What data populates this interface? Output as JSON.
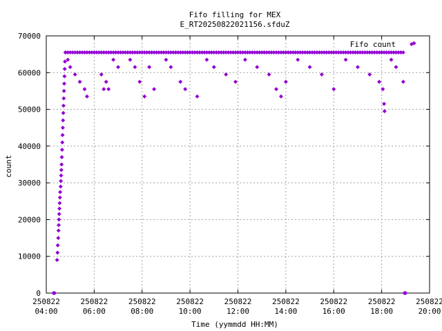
{
  "chart_data": {
    "type": "scatter",
    "title": "Fifo filling for MEX",
    "subtitle": "E_RT20250822021156.sfduZ",
    "xlabel": "Time (yymmdd HH:MM)",
    "ylabel": "count",
    "x_unit": "hours",
    "xlim": [
      4,
      20
    ],
    "ylim": [
      0,
      70000
    ],
    "x_ticks": [
      {
        "value": 4,
        "date": "250822",
        "time": "04:00"
      },
      {
        "value": 6,
        "date": "250822",
        "time": "06:00"
      },
      {
        "value": 8,
        "date": "250822",
        "time": "08:00"
      },
      {
        "value": 10,
        "date": "250822",
        "time": "10:00"
      },
      {
        "value": 12,
        "date": "250822",
        "time": "12:00"
      },
      {
        "value": 14,
        "date": "250822",
        "time": "14:00"
      },
      {
        "value": 16,
        "date": "250822",
        "time": "16:00"
      },
      {
        "value": 18,
        "date": "250822",
        "time": "18:00"
      },
      {
        "value": 20,
        "date": "250822",
        "time": "20:00"
      }
    ],
    "y_ticks": [
      0,
      10000,
      20000,
      30000,
      40000,
      50000,
      60000,
      70000
    ],
    "grid": true,
    "legend_position": "top-right",
    "color": "#9400d3",
    "series": [
      {
        "name": "Fifo count",
        "points": [
          [
            4.3,
            0
          ],
          [
            4.35,
            0
          ],
          [
            4.45,
            9000
          ],
          [
            4.47,
            11000
          ],
          [
            4.48,
            13000
          ],
          [
            4.5,
            15000
          ],
          [
            4.51,
            17000
          ],
          [
            4.52,
            18500
          ],
          [
            4.53,
            20000
          ],
          [
            4.54,
            21500
          ],
          [
            4.55,
            23000
          ],
          [
            4.56,
            24500
          ],
          [
            4.57,
            26000
          ],
          [
            4.58,
            27500
          ],
          [
            4.6,
            29000
          ],
          [
            4.61,
            30500
          ],
          [
            4.62,
            32000
          ],
          [
            4.63,
            33500
          ],
          [
            4.64,
            35000
          ],
          [
            4.65,
            37000
          ],
          [
            4.66,
            39000
          ],
          [
            4.67,
            41000
          ],
          [
            4.68,
            43000
          ],
          [
            4.69,
            45000
          ],
          [
            4.7,
            47000
          ],
          [
            4.71,
            49000
          ],
          [
            4.72,
            51000
          ],
          [
            4.73,
            53000
          ],
          [
            4.74,
            55000
          ],
          [
            4.75,
            57000
          ],
          [
            4.76,
            59000
          ],
          [
            4.77,
            61000
          ],
          [
            4.78,
            63000
          ],
          [
            4.8,
            65500
          ],
          [
            4.9,
            63500
          ],
          [
            5.0,
            61500
          ],
          [
            5.2,
            59500
          ],
          [
            5.4,
            57500
          ],
          [
            5.6,
            55500
          ],
          [
            5.7,
            53500
          ],
          [
            6.3,
            59500
          ],
          [
            6.4,
            55500
          ],
          [
            6.5,
            57500
          ],
          [
            6.6,
            55500
          ],
          [
            6.8,
            63500
          ],
          [
            7.0,
            61500
          ],
          [
            7.5,
            63500
          ],
          [
            7.7,
            61500
          ],
          [
            7.9,
            57500
          ],
          [
            8.1,
            53500
          ],
          [
            8.3,
            61500
          ],
          [
            8.5,
            55500
          ],
          [
            9.0,
            63500
          ],
          [
            9.2,
            61500
          ],
          [
            9.6,
            57500
          ],
          [
            9.8,
            55500
          ],
          [
            10.3,
            53500
          ],
          [
            10.7,
            63500
          ],
          [
            11.0,
            61500
          ],
          [
            11.5,
            59500
          ],
          [
            11.9,
            57500
          ],
          [
            12.3,
            63500
          ],
          [
            12.8,
            61500
          ],
          [
            13.3,
            59500
          ],
          [
            13.6,
            55500
          ],
          [
            13.8,
            53500
          ],
          [
            14.0,
            57500
          ],
          [
            14.5,
            63500
          ],
          [
            15.0,
            61500
          ],
          [
            15.5,
            59500
          ],
          [
            16.0,
            55500
          ],
          [
            16.5,
            63500
          ],
          [
            17.0,
            61500
          ],
          [
            17.5,
            59500
          ],
          [
            17.9,
            57500
          ],
          [
            18.05,
            55500
          ],
          [
            18.1,
            51500
          ],
          [
            18.12,
            49500
          ],
          [
            18.4,
            63500
          ],
          [
            18.6,
            61500
          ],
          [
            18.9,
            57500
          ],
          [
            18.95,
            0
          ],
          [
            19.0,
            0
          ],
          [
            19.35,
            68000
          ]
        ],
        "plateau": {
          "y": 65500,
          "x_start": 4.8,
          "x_end": 18.95,
          "step": 0.1
        }
      }
    ]
  }
}
